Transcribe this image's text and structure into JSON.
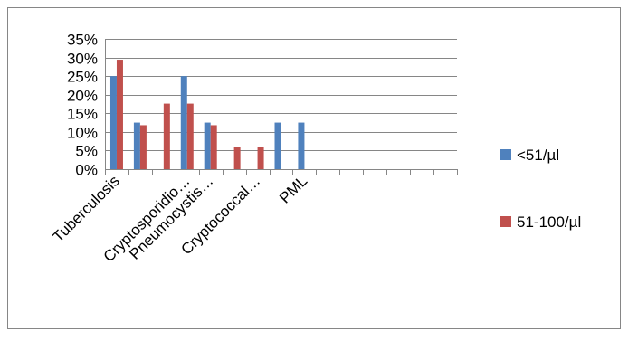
{
  "chart_data": {
    "type": "bar",
    "title": "",
    "xlabel": "",
    "ylabel": "",
    "ylim": [
      0,
      35
    ],
    "y_ticks": [
      "0%",
      "5%",
      "10%",
      "15%",
      "20%",
      "25%",
      "30%",
      "35%"
    ],
    "y_tick_values": [
      0,
      5,
      10,
      15,
      20,
      25,
      30,
      35
    ],
    "category_count": 15,
    "category_labels": [
      {
        "index": 0,
        "text": "Tuberculosis"
      },
      {
        "index": 3,
        "text": "Cryptosporidio…"
      },
      {
        "index": 4,
        "text": "Pneumocystis…"
      },
      {
        "index": 6,
        "text": "Cryptococcal…"
      },
      {
        "index": 8,
        "text": "PML"
      }
    ],
    "series": [
      {
        "name": "<51/µl",
        "color": "#4f81bd",
        "values": [
          25,
          12.5,
          0,
          25,
          12.5,
          0,
          0,
          12.5,
          12.5,
          0,
          0,
          0,
          0,
          0,
          0
        ]
      },
      {
        "name": "51-100/µl",
        "color": "#c0504d",
        "values": [
          29.4,
          11.8,
          17.6,
          17.6,
          11.8,
          5.9,
          5.9,
          0,
          0,
          0,
          0,
          0,
          0,
          0,
          0
        ]
      }
    ],
    "grid": true,
    "legend_position": "right"
  },
  "style": {
    "gridline_color": "#868686",
    "axis_color": "#868686",
    "frame_color": "#868686",
    "text_color": "#000000"
  }
}
